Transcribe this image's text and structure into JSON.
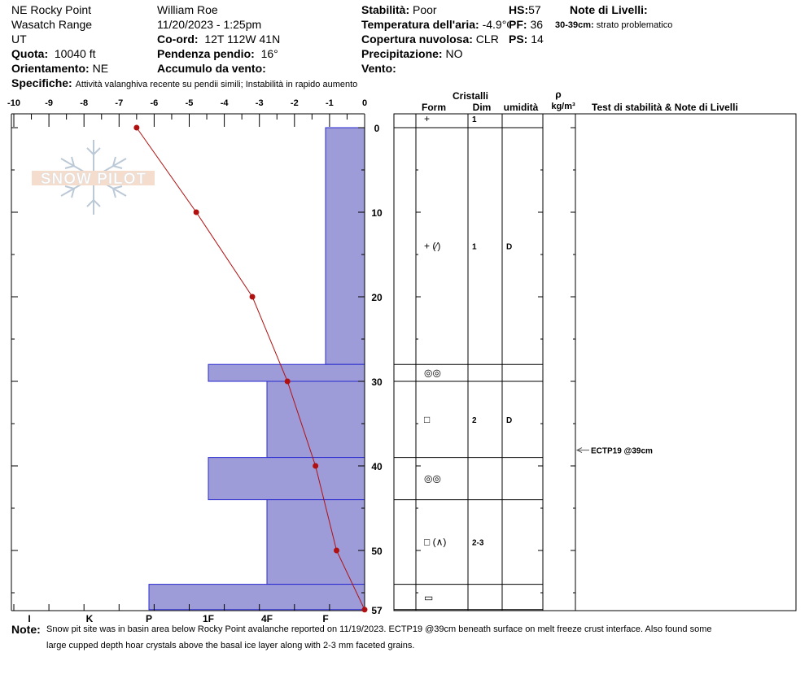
{
  "header": {
    "location": "NE Rocky Point",
    "range": "Wasatch Range",
    "state": "UT",
    "elevation_label": "Quota:",
    "elevation_value": "10040 ft",
    "aspect_label": "Orientamento:",
    "aspect_value": "NE",
    "observer": "William  Roe",
    "datetime": "11/20/2023 - 1:25pm",
    "coord_label": "Co-ord:",
    "coord_value": "12T 112W 41N",
    "slope_label": "Pendenza pendio:",
    "slope_value": "16°",
    "wind_load_label": "Accumulo da vento:",
    "stability_label": "Stabilità:",
    "stability_value": "Poor",
    "air_temp_label": "Temperatura dell'aria:",
    "air_temp_value": "-4.9°C",
    "cloud_label": "Copertura nuvolosa:",
    "cloud_value": "CLR",
    "precip_label": "Precipitazione:",
    "precip_value": "NO",
    "wind_label": "Vento:",
    "hs_label": "HS:",
    "hs_value": "57",
    "pf_label": "PF:",
    "pf_value": "36",
    "ps_label": "PS:",
    "ps_value": "14",
    "layer_notes_label": "Note di Livelli:",
    "layer_note_depth": "30-39cm:",
    "layer_note_text": "strato problematico",
    "specifics_label": "Specifiche:",
    "specifics_value": "Attività valanghiva recente su pendii simili;  Instabilità in rapido aumento"
  },
  "logo_text": "SNOW PILOT",
  "columns": {
    "crystals": "Cristalli",
    "form": "Form",
    "size": "Dim",
    "moisture": "umidità",
    "density_symbol": "ρ",
    "density_unit": "kg/m³",
    "stability_notes": "Test di stabilità & Note di Livelli"
  },
  "chart_data": {
    "type": "snow_profile",
    "temperature_axis": {
      "ticks": [
        "-10",
        "-9",
        "-8",
        "-7",
        "-6",
        "-5",
        "-4",
        "-3",
        "-2",
        "-1",
        "0"
      ],
      "range": [
        -10,
        0
      ]
    },
    "depth_axis": {
      "ticks": [
        "0",
        "10",
        "20",
        "30",
        "40",
        "50",
        "57"
      ],
      "range": [
        0,
        57
      ]
    },
    "hardness_axis": {
      "ticks": [
        "I",
        "K",
        "P",
        "1F",
        "4F",
        "F"
      ]
    },
    "temperature_profile": [
      {
        "depth": 0,
        "temp": -6.5
      },
      {
        "depth": 10,
        "temp": -4.8
      },
      {
        "depth": 20,
        "temp": -3.2
      },
      {
        "depth": 30,
        "temp": -2.2
      },
      {
        "depth": 40,
        "temp": -1.4
      },
      {
        "depth": 50,
        "temp": -0.8
      },
      {
        "depth": 57,
        "temp": 0
      }
    ],
    "hardness_layers": [
      {
        "top": 0,
        "bottom": 28,
        "hardness": "F"
      },
      {
        "top": 28,
        "bottom": 30,
        "hardness": "1F"
      },
      {
        "top": 30,
        "bottom": 39,
        "hardness": "4F-"
      },
      {
        "top": 39,
        "bottom": 44,
        "hardness": "1F"
      },
      {
        "top": 44,
        "bottom": 54,
        "hardness": "4F"
      },
      {
        "top": 54,
        "bottom": 57,
        "hardness": "P"
      }
    ],
    "layers": [
      {
        "top": 0,
        "bottom": 0,
        "form": "+",
        "size": "1",
        "moisture": ""
      },
      {
        "top": 0,
        "bottom": 28,
        "form": "+ (⁄)",
        "size": "1",
        "moisture": "D"
      },
      {
        "top": 28,
        "bottom": 30,
        "form": "◎◎",
        "size": "",
        "moisture": ""
      },
      {
        "top": 30,
        "bottom": 39,
        "form": "□",
        "size": "2",
        "moisture": "D"
      },
      {
        "top": 39,
        "bottom": 44,
        "form": "◎◎",
        "size": "",
        "moisture": ""
      },
      {
        "top": 44,
        "bottom": 54,
        "form": "□ (∧)",
        "size": "2-3",
        "moisture": ""
      },
      {
        "top": 54,
        "bottom": 57,
        "form": "▭",
        "size": "",
        "moisture": ""
      }
    ],
    "stability_tests": [
      {
        "depth": 39,
        "label": "ECTP19 @39cm"
      }
    ]
  },
  "footer": {
    "notes_label": "Note:",
    "notes_line1": "Snow pit site was in basin area below Rocky Point avalanche reported on 11/19/2023. ECTP19 @39cm beneath surface on melt freeze crust interface. Also found some",
    "notes_line2": "large cupped depth hoar crystals above the basal ice layer along with 2-3 mm faceted grains."
  }
}
